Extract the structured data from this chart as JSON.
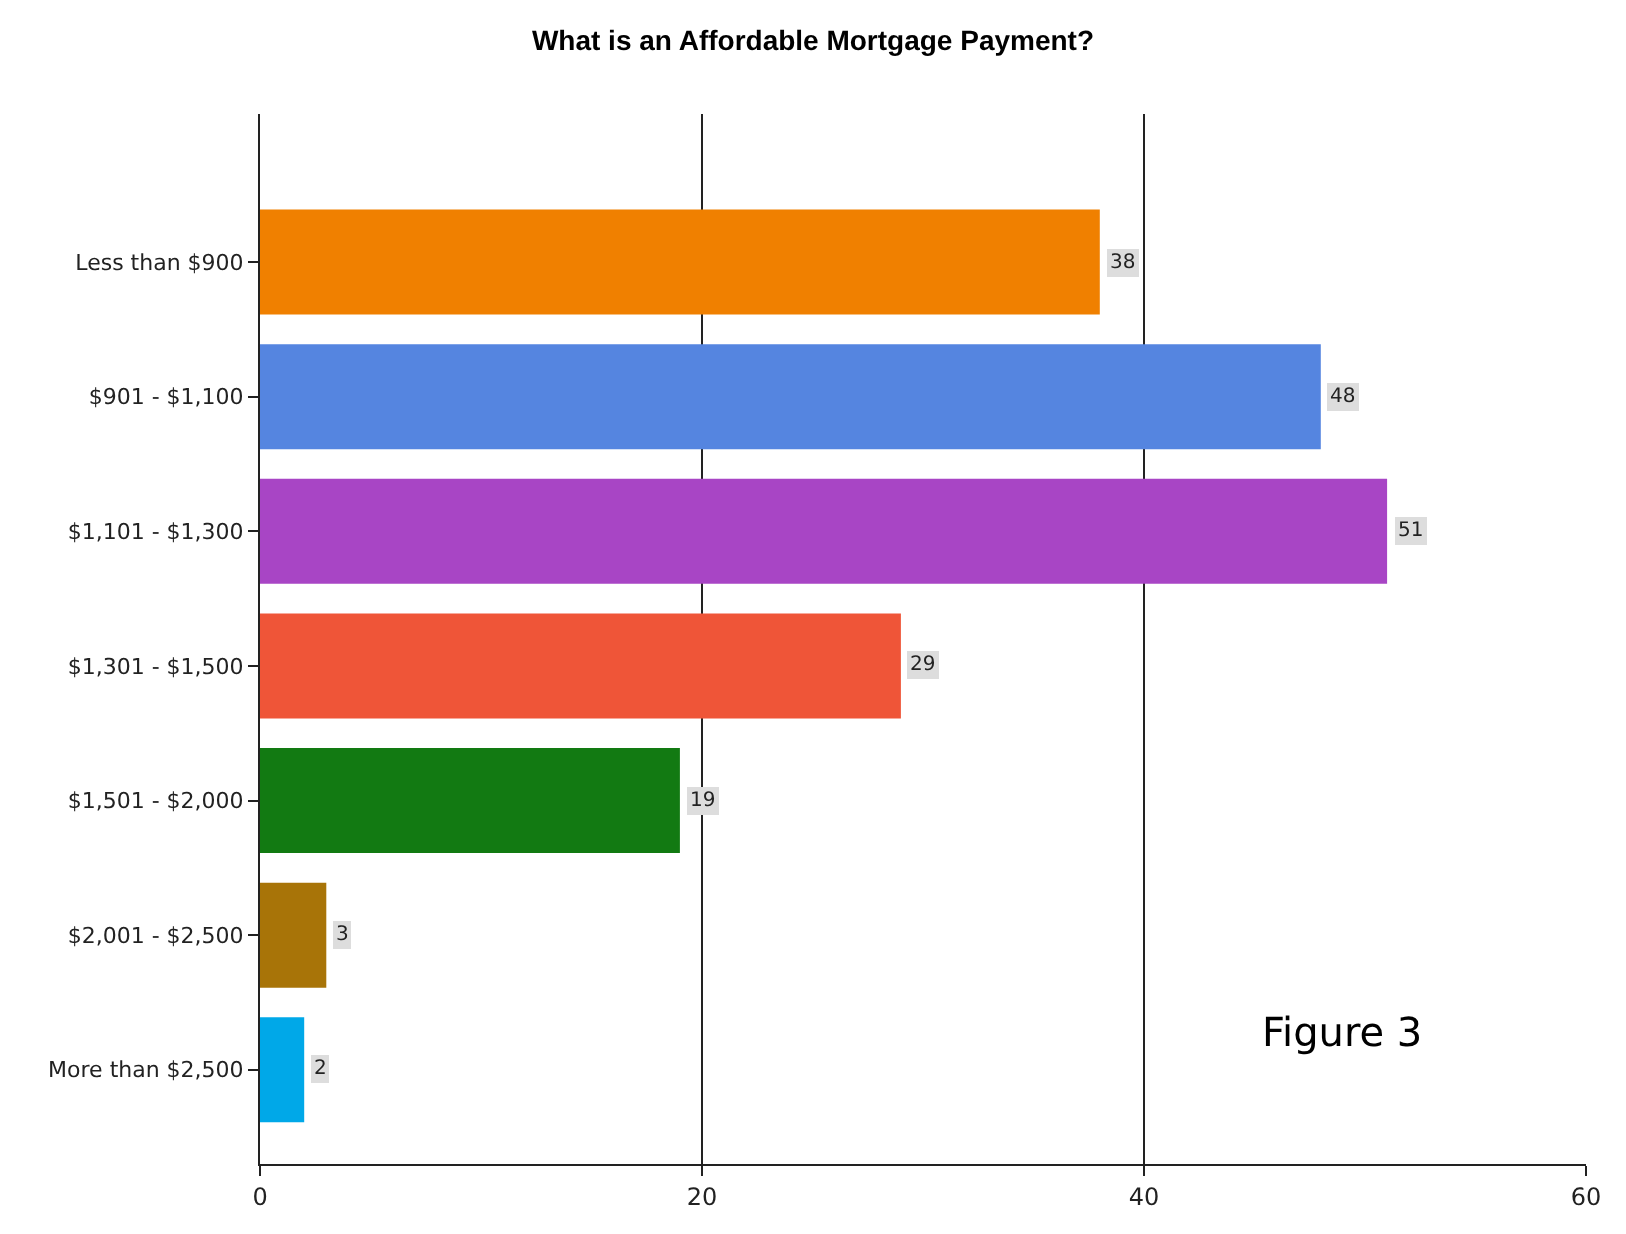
{
  "chart_data": {
    "type": "bar",
    "orientation": "horizontal",
    "title": "What is an Affordable Mortgage Payment?",
    "categories": [
      "Less than $900",
      "$901 - $1,100",
      "$1,101 - $1,300",
      "$1,301 - $1,500",
      "$1,501 - $2,000",
      "$2,001 - $2,500",
      "More than $2,500"
    ],
    "values": [
      38,
      48,
      51,
      29,
      19,
      3,
      2
    ],
    "colors": [
      "#f08000",
      "#5585e0",
      "#a845c5",
      "#ef5538",
      "#127a12",
      "#a87408",
      "#00a8e8"
    ],
    "xlim": [
      0,
      60
    ],
    "xticks": [
      0,
      20,
      40,
      60
    ],
    "grid": "x",
    "data_labels": true,
    "legend": false,
    "annotations": [
      "Figure 3"
    ]
  }
}
